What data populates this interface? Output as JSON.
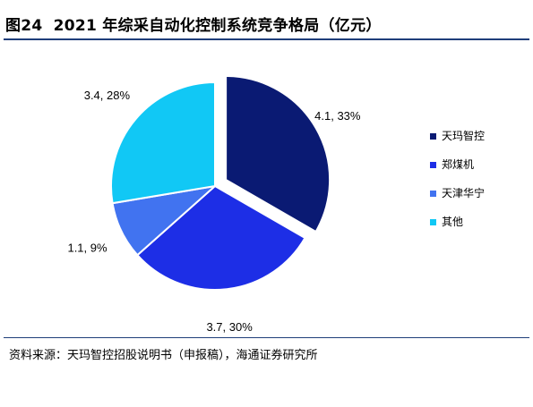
{
  "figure": {
    "label": "图24",
    "title": "2021 年综采自动化控制系统竞争格局（亿元）",
    "source": "资料来源：天玛智控招股说明书（申报稿），海通证券研究所"
  },
  "chart_data": {
    "type": "pie",
    "title": "",
    "labels": [
      "天玛智控",
      "郑煤机",
      "天津华宁",
      "其他"
    ],
    "values": [
      4.1,
      3.7,
      1.1,
      3.4
    ],
    "percentages": [
      33,
      30,
      9,
      28
    ],
    "data_labels": [
      "4.1, 33%",
      "3.7, 30%",
      "1.1, 9%",
      "3.4, 28%"
    ],
    "colors": [
      "#0a1a73",
      "#1d2ee6",
      "#4173f0",
      "#11c8f5"
    ],
    "exploded": "天玛智控",
    "legend_position": "right"
  }
}
